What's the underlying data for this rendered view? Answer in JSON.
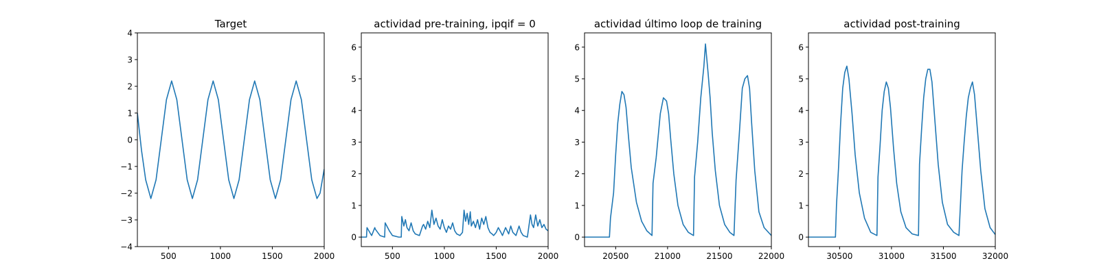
{
  "colors": {
    "series": "#1f77b4",
    "axes": "#000000",
    "background": "#ffffff"
  },
  "chart_data": [
    {
      "type": "line",
      "title": "Target",
      "xlabel": "",
      "ylabel": "",
      "xlim": [
        200,
        2000
      ],
      "ylim": [
        -4,
        4
      ],
      "xticks": [
        500,
        1000,
        1500,
        2000
      ],
      "yticks": [
        -4,
        -3,
        -2,
        -1,
        0,
        1,
        2,
        3,
        4
      ],
      "grid": false,
      "series": [
        {
          "x": [
            200,
            240,
            280,
            330,
            380,
            430,
            480,
            530,
            580,
            630,
            680,
            730,
            780,
            830,
            880,
            930,
            980,
            1030,
            1080,
            1130,
            1180,
            1230,
            1280,
            1330,
            1380,
            1430,
            1480,
            1530,
            1580,
            1630,
            1680,
            1730,
            1780,
            1830,
            1880,
            1930,
            1960,
            2000
          ],
          "y": [
            1.0,
            -0.4,
            -1.5,
            -2.2,
            -1.5,
            0.0,
            1.5,
            2.2,
            1.5,
            0.0,
            -1.5,
            -2.2,
            -1.5,
            0.0,
            1.5,
            2.2,
            1.5,
            0.0,
            -1.5,
            -2.2,
            -1.5,
            0.0,
            1.5,
            2.2,
            1.5,
            0.0,
            -1.5,
            -2.2,
            -1.5,
            0.0,
            1.5,
            2.2,
            1.5,
            0.0,
            -1.5,
            -2.2,
            -2.0,
            -1.1
          ]
        }
      ]
    },
    {
      "type": "line",
      "title": "actividad pre-training, ipqif = 0",
      "xlabel": "",
      "ylabel": "",
      "xlim": [
        200,
        2000
      ],
      "ylim": [
        -0.3,
        6.45
      ],
      "xticks": [
        500,
        1000,
        1500,
        2000
      ],
      "yticks": [
        0,
        1,
        2,
        3,
        4,
        5,
        6
      ],
      "grid": false,
      "series": [
        {
          "x": [
            200,
            250,
            255,
            290,
            300,
            330,
            335,
            380,
            425,
            430,
            470,
            500,
            560,
            585,
            590,
            610,
            625,
            640,
            660,
            680,
            700,
            720,
            760,
            790,
            800,
            820,
            840,
            860,
            880,
            900,
            920,
            940,
            960,
            980,
            1000,
            1020,
            1040,
            1060,
            1080,
            1100,
            1120,
            1150,
            1175,
            1190,
            1205,
            1220,
            1235,
            1250,
            1260,
            1280,
            1300,
            1320,
            1340,
            1360,
            1380,
            1400,
            1420,
            1440,
            1460,
            1475,
            1500,
            1520,
            1545,
            1560,
            1590,
            1620,
            1640,
            1660,
            1690,
            1720,
            1740,
            1760,
            1800,
            1830,
            1845,
            1860,
            1880,
            1900,
            1920,
            1940,
            1960,
            1980,
            2000
          ],
          "y": [
            0.0,
            0.0,
            0.3,
            0.1,
            0.05,
            0.3,
            0.25,
            0.05,
            0.0,
            0.45,
            0.2,
            0.05,
            0.0,
            0.0,
            0.65,
            0.35,
            0.55,
            0.3,
            0.2,
            0.45,
            0.2,
            0.1,
            0.05,
            0.35,
            0.4,
            0.25,
            0.5,
            0.3,
            0.85,
            0.4,
            0.6,
            0.35,
            0.25,
            0.55,
            0.3,
            0.15,
            0.35,
            0.25,
            0.45,
            0.2,
            0.1,
            0.05,
            0.15,
            0.85,
            0.5,
            0.75,
            0.4,
            0.8,
            0.35,
            0.5,
            0.3,
            0.55,
            0.25,
            0.6,
            0.4,
            0.65,
            0.3,
            0.15,
            0.1,
            0.05,
            0.15,
            0.3,
            0.15,
            0.05,
            0.3,
            0.1,
            0.35,
            0.15,
            0.05,
            0.35,
            0.15,
            0.05,
            0.0,
            0.7,
            0.4,
            0.3,
            0.7,
            0.35,
            0.55,
            0.3,
            0.4,
            0.25,
            0.2
          ]
        }
      ]
    },
    {
      "type": "line",
      "title": "actividad último loop de training",
      "xlabel": "",
      "ylabel": "",
      "xlim": [
        20200,
        22000
      ],
      "ylim": [
        -0.3,
        6.45
      ],
      "xticks": [
        20500,
        21000,
        21500,
        22000
      ],
      "yticks": [
        0,
        1,
        2,
        3,
        4,
        5,
        6
      ],
      "grid": false,
      "series": [
        {
          "x": [
            20200,
            20440,
            20450,
            20480,
            20500,
            20520,
            20540,
            20560,
            20580,
            20600,
            20620,
            20650,
            20700,
            20750,
            20800,
            20850,
            20860,
            20890,
            20910,
            20930,
            20960,
            20990,
            21010,
            21030,
            21060,
            21100,
            21150,
            21200,
            21250,
            21260,
            21290,
            21320,
            21350,
            21365,
            21390,
            21410,
            21430,
            21460,
            21500,
            21550,
            21600,
            21640,
            21660,
            21690,
            21720,
            21745,
            21770,
            21790,
            21810,
            21840,
            21880,
            21930,
            22000
          ],
          "y": [
            0.0,
            0.0,
            0.6,
            1.4,
            2.6,
            3.6,
            4.2,
            4.6,
            4.5,
            4.1,
            3.3,
            2.2,
            1.1,
            0.5,
            0.2,
            0.05,
            1.7,
            2.5,
            3.2,
            3.9,
            4.4,
            4.3,
            3.9,
            3.1,
            2.0,
            1.0,
            0.4,
            0.15,
            0.05,
            1.9,
            3.0,
            4.4,
            5.4,
            6.1,
            5.2,
            4.4,
            3.3,
            2.1,
            1.0,
            0.4,
            0.15,
            0.05,
            1.8,
            3.2,
            4.7,
            5.0,
            5.1,
            4.7,
            3.6,
            2.1,
            0.8,
            0.3,
            0.05
          ]
        }
      ]
    },
    {
      "type": "line",
      "title": "actividad post-training",
      "xlabel": "",
      "ylabel": "",
      "xlim": [
        30200,
        32000
      ],
      "ylim": [
        -0.3,
        6.45
      ],
      "xticks": [
        30500,
        31000,
        31500,
        32000
      ],
      "yticks": [
        0,
        1,
        2,
        3,
        4,
        5,
        6
      ],
      "grid": false,
      "series": [
        {
          "x": [
            30200,
            30460,
            30470,
            30490,
            30510,
            30530,
            30550,
            30570,
            30590,
            30620,
            30650,
            30690,
            30740,
            30800,
            30860,
            30870,
            30890,
            30910,
            30930,
            30950,
            30970,
            30990,
            31020,
            31050,
            31090,
            31140,
            31200,
            31260,
            31270,
            31290,
            31310,
            31330,
            31350,
            31370,
            31390,
            31420,
            31450,
            31490,
            31540,
            31600,
            31650,
            31680,
            31700,
            31720,
            31740,
            31760,
            31780,
            31800,
            31830,
            31860,
            31900,
            31950,
            32000
          ],
          "y": [
            0.0,
            0.0,
            1.0,
            2.2,
            3.6,
            4.7,
            5.2,
            5.4,
            5.0,
            3.9,
            2.6,
            1.4,
            0.6,
            0.15,
            0.05,
            1.9,
            2.9,
            4.0,
            4.6,
            4.9,
            4.7,
            4.1,
            2.8,
            1.7,
            0.8,
            0.3,
            0.1,
            0.05,
            2.3,
            3.4,
            4.4,
            5.0,
            5.3,
            5.3,
            4.9,
            3.6,
            2.3,
            1.1,
            0.4,
            0.15,
            0.05,
            2.1,
            3.0,
            3.8,
            4.4,
            4.7,
            4.9,
            4.5,
            3.3,
            2.1,
            0.9,
            0.3,
            0.08
          ]
        }
      ]
    }
  ]
}
